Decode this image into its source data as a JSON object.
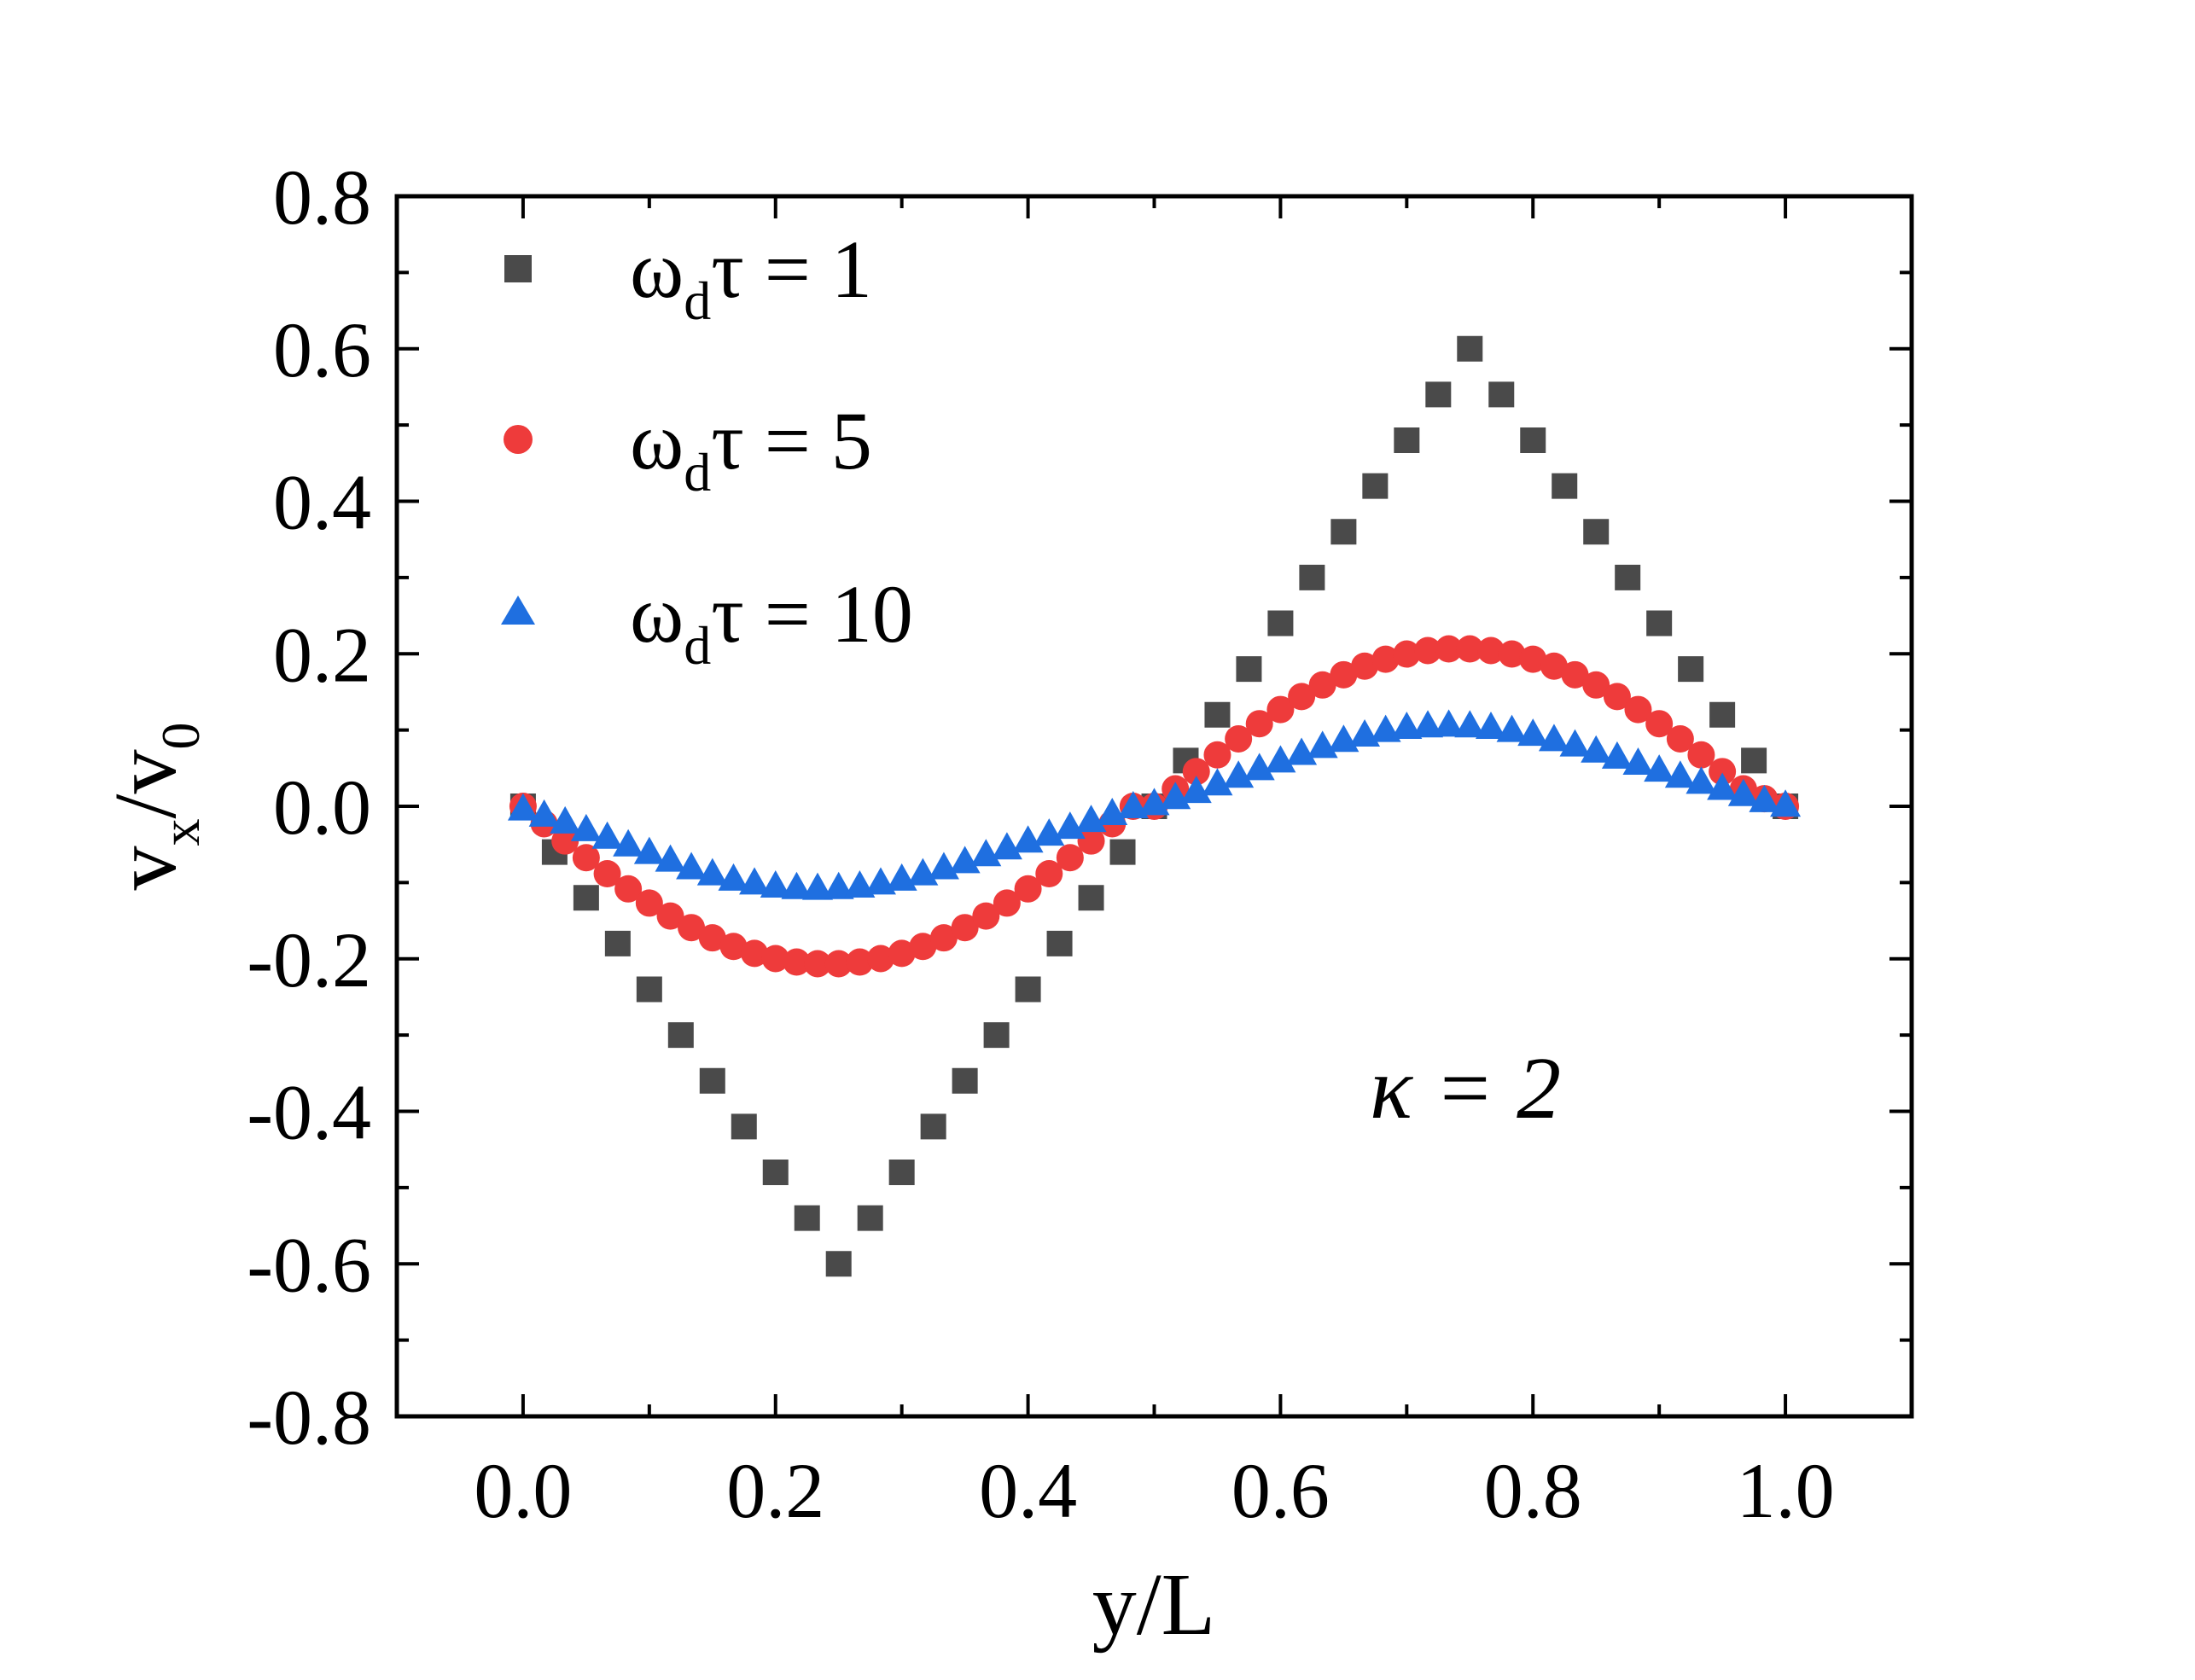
{
  "chart_data": {
    "type": "scatter",
    "title": "",
    "xlabel": "y/L",
    "ylabel": {
      "main": "v",
      "sub_x": "x",
      "sep": "/v",
      "sub_0": "0"
    },
    "xlim": [
      -0.1,
      1.1
    ],
    "ylim": [
      -0.8,
      0.8
    ],
    "x_ticks": [
      0.0,
      0.2,
      0.4,
      0.6,
      0.8,
      1.0
    ],
    "x_tick_labels": [
      "0.0",
      "0.2",
      "0.4",
      "0.6",
      "0.8",
      "1.0"
    ],
    "y_ticks": [
      -0.8,
      -0.6,
      -0.4,
      -0.2,
      0.0,
      0.2,
      0.4,
      0.6,
      0.8
    ],
    "y_tick_labels": [
      "-0.8",
      "-0.6",
      "-0.4",
      "-0.2",
      "0.0",
      "0.2",
      "0.4",
      "0.6",
      "0.8"
    ],
    "grid": false,
    "legend_position": "top-left",
    "annotation": "κ = 2",
    "series": [
      {
        "name": "ωdτ = 1",
        "label_main": "ω",
        "label_sub": "d",
        "label_rest": "τ = 1",
        "marker": "square",
        "color": "#4a4a4a",
        "x": [
          0.0,
          0.025,
          0.05,
          0.075,
          0.1,
          0.125,
          0.15,
          0.175,
          0.2,
          0.225,
          0.25,
          0.275,
          0.3,
          0.325,
          0.35,
          0.375,
          0.4,
          0.425,
          0.45,
          0.475,
          0.5,
          0.525,
          0.55,
          0.575,
          0.6,
          0.625,
          0.65,
          0.675,
          0.7,
          0.725,
          0.75,
          0.775,
          0.8,
          0.825,
          0.85,
          0.875,
          0.9,
          0.925,
          0.95,
          0.975,
          1.0
        ],
        "y": [
          0.0,
          -0.06,
          -0.12,
          -0.18,
          -0.24,
          -0.3,
          -0.36,
          -0.42,
          -0.48,
          -0.54,
          -0.6,
          -0.54,
          -0.48,
          -0.42,
          -0.36,
          -0.3,
          -0.24,
          -0.18,
          -0.12,
          -0.06,
          0.0,
          0.06,
          0.12,
          0.18,
          0.24,
          0.3,
          0.36,
          0.42,
          0.48,
          0.54,
          0.6,
          0.54,
          0.48,
          0.42,
          0.36,
          0.3,
          0.24,
          0.18,
          0.12,
          0.06,
          0.0
        ]
      },
      {
        "name": "ωdτ = 5",
        "label_main": "ω",
        "label_sub": "d",
        "label_rest": "τ = 5",
        "marker": "circle",
        "color": "#ee3b3b",
        "x": [
          0.0,
          0.0167,
          0.0333,
          0.05,
          0.0667,
          0.0833,
          0.1,
          0.1167,
          0.1333,
          0.15,
          0.1667,
          0.1833,
          0.2,
          0.2167,
          0.2333,
          0.25,
          0.2667,
          0.2833,
          0.3,
          0.3167,
          0.3333,
          0.35,
          0.3667,
          0.3833,
          0.4,
          0.4167,
          0.4333,
          0.45,
          0.4667,
          0.4833,
          0.5,
          0.5167,
          0.5333,
          0.55,
          0.5667,
          0.5833,
          0.6,
          0.6167,
          0.6333,
          0.65,
          0.6667,
          0.6833,
          0.7,
          0.7167,
          0.7333,
          0.75,
          0.7667,
          0.7833,
          0.8,
          0.8167,
          0.8333,
          0.85,
          0.8667,
          0.8833,
          0.9,
          0.9167,
          0.9333,
          0.95,
          0.9667,
          0.9833,
          1.0
        ],
        "y": [
          0.0,
          -0.0229,
          -0.0455,
          -0.0674,
          -0.0884,
          -0.1083,
          -0.1269,
          -0.1439,
          -0.1591,
          -0.1725,
          -0.1838,
          -0.1929,
          -0.1997,
          -0.2042,
          -0.2064,
          -0.2064,
          -0.2042,
          -0.1997,
          -0.1929,
          -0.1838,
          -0.1725,
          -0.1591,
          -0.1439,
          -0.1269,
          -0.1083,
          -0.0884,
          -0.0674,
          -0.0455,
          -0.0229,
          0.0,
          0.0,
          0.0229,
          0.0455,
          0.0674,
          0.0884,
          0.1083,
          0.1269,
          0.1439,
          0.1591,
          0.1725,
          0.1838,
          0.1929,
          0.1997,
          0.2042,
          0.2064,
          0.2064,
          0.2042,
          0.1997,
          0.1929,
          0.1838,
          0.1725,
          0.1591,
          0.1439,
          0.1269,
          0.1083,
          0.0884,
          0.0674,
          0.0455,
          0.0229,
          0.01,
          0.0
        ]
      },
      {
        "name": "ωdτ = 10",
        "label_main": "ω",
        "label_sub": "d",
        "label_rest": "τ = 10",
        "marker": "triangle",
        "color": "#1f6fe0",
        "x": [
          0.0,
          0.0167,
          0.0333,
          0.05,
          0.0667,
          0.0833,
          0.1,
          0.1167,
          0.1333,
          0.15,
          0.1667,
          0.1833,
          0.2,
          0.2167,
          0.2333,
          0.25,
          0.2667,
          0.2833,
          0.3,
          0.3167,
          0.3333,
          0.35,
          0.3667,
          0.3833,
          0.4,
          0.4167,
          0.4333,
          0.45,
          0.4667,
          0.4833,
          0.5,
          0.5167,
          0.5333,
          0.55,
          0.5667,
          0.5833,
          0.6,
          0.6167,
          0.6333,
          0.65,
          0.6667,
          0.6833,
          0.7,
          0.7167,
          0.7333,
          0.75,
          0.7667,
          0.7833,
          0.8,
          0.8167,
          0.8333,
          0.85,
          0.8667,
          0.8833,
          0.9,
          0.9167,
          0.9333,
          0.95,
          0.9667,
          0.9833,
          1.0
        ],
        "y": [
          -0.003,
          -0.011,
          -0.02,
          -0.03,
          -0.04,
          -0.05,
          -0.06,
          -0.07,
          -0.08,
          -0.088,
          -0.095,
          -0.1,
          -0.104,
          -0.106,
          -0.107,
          -0.106,
          -0.104,
          -0.1,
          -0.095,
          -0.088,
          -0.08,
          -0.072,
          -0.063,
          -0.054,
          -0.045,
          -0.036,
          -0.027,
          -0.018,
          -0.009,
          0.0,
          0.004,
          0.012,
          0.02,
          0.03,
          0.04,
          0.05,
          0.06,
          0.07,
          0.079,
          0.087,
          0.094,
          0.1,
          0.104,
          0.106,
          0.107,
          0.106,
          0.104,
          0.1,
          0.095,
          0.088,
          0.081,
          0.073,
          0.065,
          0.057,
          0.048,
          0.04,
          0.032,
          0.024,
          0.016,
          0.008,
          0.002
        ]
      }
    ]
  }
}
